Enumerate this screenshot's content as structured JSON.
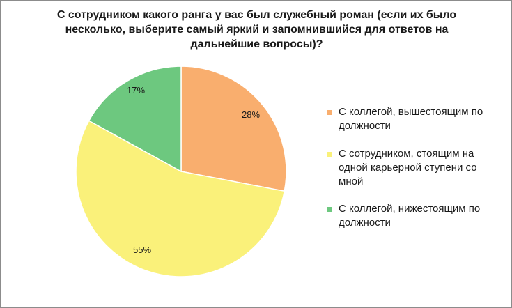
{
  "title_lines": [
    "С сотрудником какого ранга у вас был служебный роман (если их было",
    "несколько, выберите самый яркий и запомнившийся для ответов на",
    "дальнейшие вопросы)?"
  ],
  "chart_data": {
    "type": "pie",
    "title": "С сотрудником какого ранга у вас был служебный роман (если их было несколько, выберите самый яркий и запомнившийся для ответов на дальнейшие вопросы)?",
    "start_angle": "12 o'clock, clockwise",
    "slices": [
      {
        "label": "С коллегой, вышестоящим по должности",
        "value": 28,
        "display": "28%",
        "color": "#F9AE6E"
      },
      {
        "label": "С сотрудником, стоящим на одной карьерной ступени со мной",
        "value": 55,
        "display": "55%",
        "color": "#FAF17A"
      },
      {
        "label": "С коллегой, нижестоящим по должности",
        "value": 17,
        "display": "17%",
        "color": "#6DC87F"
      }
    ],
    "legend_position": "right"
  },
  "legend": {
    "items": [
      {
        "lines": [
          "С коллегой, вышестоящим по",
          "должности"
        ]
      },
      {
        "lines": [
          "С сотрудником, стоящим на",
          "одной карьерной ступени со",
          "мной"
        ]
      },
      {
        "lines": [
          "С коллегой, нижестоящим по",
          "должности"
        ]
      }
    ]
  }
}
